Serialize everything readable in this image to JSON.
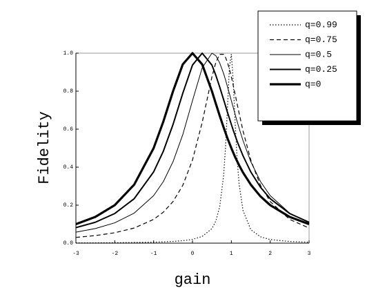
{
  "chart_data": {
    "type": "line",
    "xlabel": "gain",
    "ylabel": "Fidelity",
    "x": [
      -3,
      -2.5,
      -2,
      -1.5,
      -1,
      -0.75,
      -0.5,
      -0.25,
      0,
      0.25,
      0.5,
      0.6,
      0.7,
      0.8,
      0.85,
      0.9,
      0.95,
      1,
      1.05,
      1.1,
      1.15,
      1.2,
      1.3,
      1.5,
      1.75,
      2,
      2.5,
      3
    ],
    "series": [
      {
        "name": "q=0.99",
        "color": "#000000",
        "dash": "dotted",
        "width": 1.2,
        "values": [
          0.00125,
          0.00163,
          0.00222,
          0.0032,
          0.005,
          0.00656,
          0.00894,
          0.0128,
          0.0199,
          0.0351,
          0.0765,
          0.116,
          0.191,
          0.355,
          0.504,
          0.711,
          0.926,
          0.995,
          0.847,
          0.622,
          0.437,
          0.311,
          0.172,
          0.0711,
          0.0333,
          0.0191,
          0.00865,
          0.0049
        ]
      },
      {
        "name": "q=0.75",
        "color": "#000000",
        "dash": "dashed",
        "width": 1.2,
        "values": [
          0.0302,
          0.0398,
          0.0547,
          0.0795,
          0.125,
          0.163,
          0.219,
          0.304,
          0.4375,
          0.636,
          0.875,
          0.951,
          0.994,
          0.994,
          0.978,
          0.951,
          0.916,
          0.875,
          0.829,
          0.781,
          0.732,
          0.684,
          0.591,
          0.4375,
          0.304,
          0.219,
          0.125,
          0.0795
        ]
      },
      {
        "name": "q=0.5",
        "color": "#000000",
        "dash": "solid",
        "width": 1,
        "values": [
          0.0577,
          0.0769,
          0.107,
          0.158,
          0.25,
          0.324,
          0.429,
          0.571,
          0.75,
          0.923,
          1,
          0.987,
          0.949,
          0.893,
          0.86,
          0.824,
          0.787,
          0.75,
          0.713,
          0.676,
          0.64,
          0.605,
          0.54,
          0.429,
          0.324,
          0.25,
          0.158,
          0.107
        ]
      },
      {
        "name": "q=0.25",
        "color": "#000000",
        "dash": "solid",
        "width": 2,
        "values": [
          0.0815,
          0.11,
          0.156,
          0.234,
          0.375,
          0.484,
          0.625,
          0.789,
          0.9375,
          1,
          0.9375,
          0.884,
          0.822,
          0.756,
          0.723,
          0.689,
          0.657,
          0.625,
          0.594,
          0.565,
          0.536,
          0.51,
          0.46,
          0.375,
          0.294,
          0.234,
          0.156,
          0.11
        ]
      },
      {
        "name": "q=0",
        "color": "#000000",
        "dash": "solid",
        "width": 3.2,
        "values": [
          0.1,
          0.138,
          0.2,
          0.308,
          0.5,
          0.64,
          0.8,
          0.941,
          1,
          0.941,
          0.8,
          0.735,
          0.671,
          0.61,
          0.581,
          0.552,
          0.526,
          0.5,
          0.476,
          0.452,
          0.431,
          0.41,
          0.372,
          0.308,
          0.246,
          0.2,
          0.138,
          0.1
        ]
      }
    ],
    "xlim": [
      -3,
      3
    ],
    "xticks": [
      -3,
      -2,
      -1,
      0,
      1,
      2,
      3
    ],
    "ylim": [
      0,
      1
    ],
    "yticks": [
      {
        "value": 0,
        "label": "0.0"
      },
      {
        "value": 0.2,
        "label": "0.2"
      },
      {
        "value": 0.4,
        "label": "0.4"
      },
      {
        "value": 0.6,
        "label": "0.6"
      },
      {
        "value": 0.8,
        "label": "0.8"
      },
      {
        "value": 1,
        "label": "1.0"
      }
    ],
    "grid": false,
    "legend": "upper right"
  }
}
